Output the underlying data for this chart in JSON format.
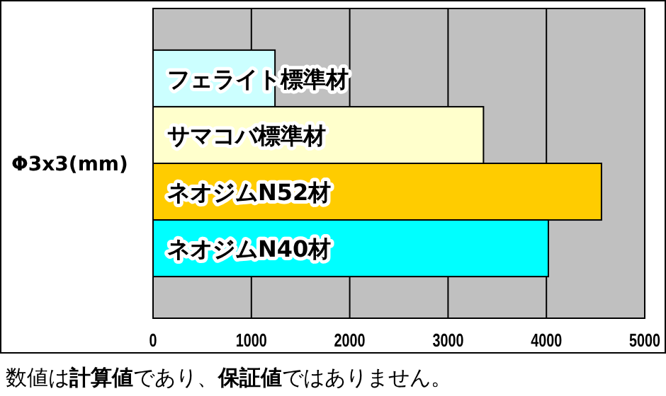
{
  "chart_data": {
    "type": "bar",
    "orientation": "horizontal",
    "categories": [
      "フェライト標準材",
      "サマコバ標準材",
      "ネオジムN52材",
      "ネオジムN40材"
    ],
    "values": [
      1240,
      3360,
      4560,
      4020
    ],
    "colors": [
      "#ccffff",
      "#ffffcc",
      "#ffcc00",
      "#00ffff"
    ],
    "ylabel": "Φ3x3(mm)",
    "xlim": [
      0,
      5000
    ],
    "xticks": [
      0,
      1000,
      2000,
      3000,
      4000,
      5000
    ],
    "grid": "x",
    "annotations": [
      "数値は**計算値**であり、**保証値**ではありません。"
    ]
  }
}
